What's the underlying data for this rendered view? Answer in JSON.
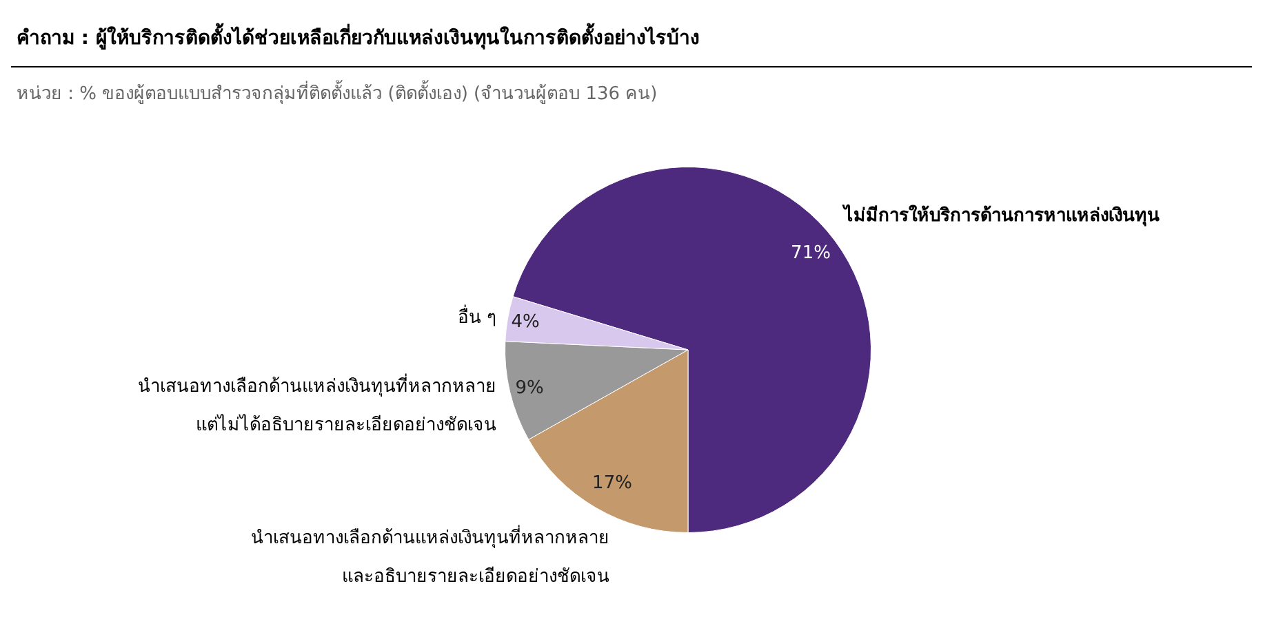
{
  "chart_data": {
    "type": "pie",
    "title": "คำถาม : ผู้ให้บริการติดตั้งได้ช่วยเหลือเกี่ยวกับแหล่งเงินทุนในการติดตั้งอย่างไรบ้าง",
    "subtitle": "หน่วย : % ของผู้ตอบแบบสำรวจกลุ่มที่ติดตั้งแล้ว (ติดตั้งเอง) (จำนวนผู้ตอบ 136 คน)",
    "categories": [
      "ไม่มีการให้บริการด้านการหาแหล่งเงินทุน",
      "นำเสนอทางเลือกด้านแหล่งเงินทุนที่หลากหลาย และอธิบายรายละเอียดอย่างชัดเจน",
      "นำเสนอทางเลือกด้านแหล่งเงินทุนที่หลากหลาย แต่ไม่ได้อธิบายรายละเอียดอย่างชัดเจน",
      "อื่น ๆ"
    ],
    "values": [
      71,
      17,
      9,
      4
    ],
    "value_labels": [
      "71%",
      "17%",
      "9%",
      "4%"
    ],
    "colors": [
      "#4e2a7e",
      "#c49a6c",
      "#999999",
      "#d9c8ee"
    ],
    "legend": false
  }
}
